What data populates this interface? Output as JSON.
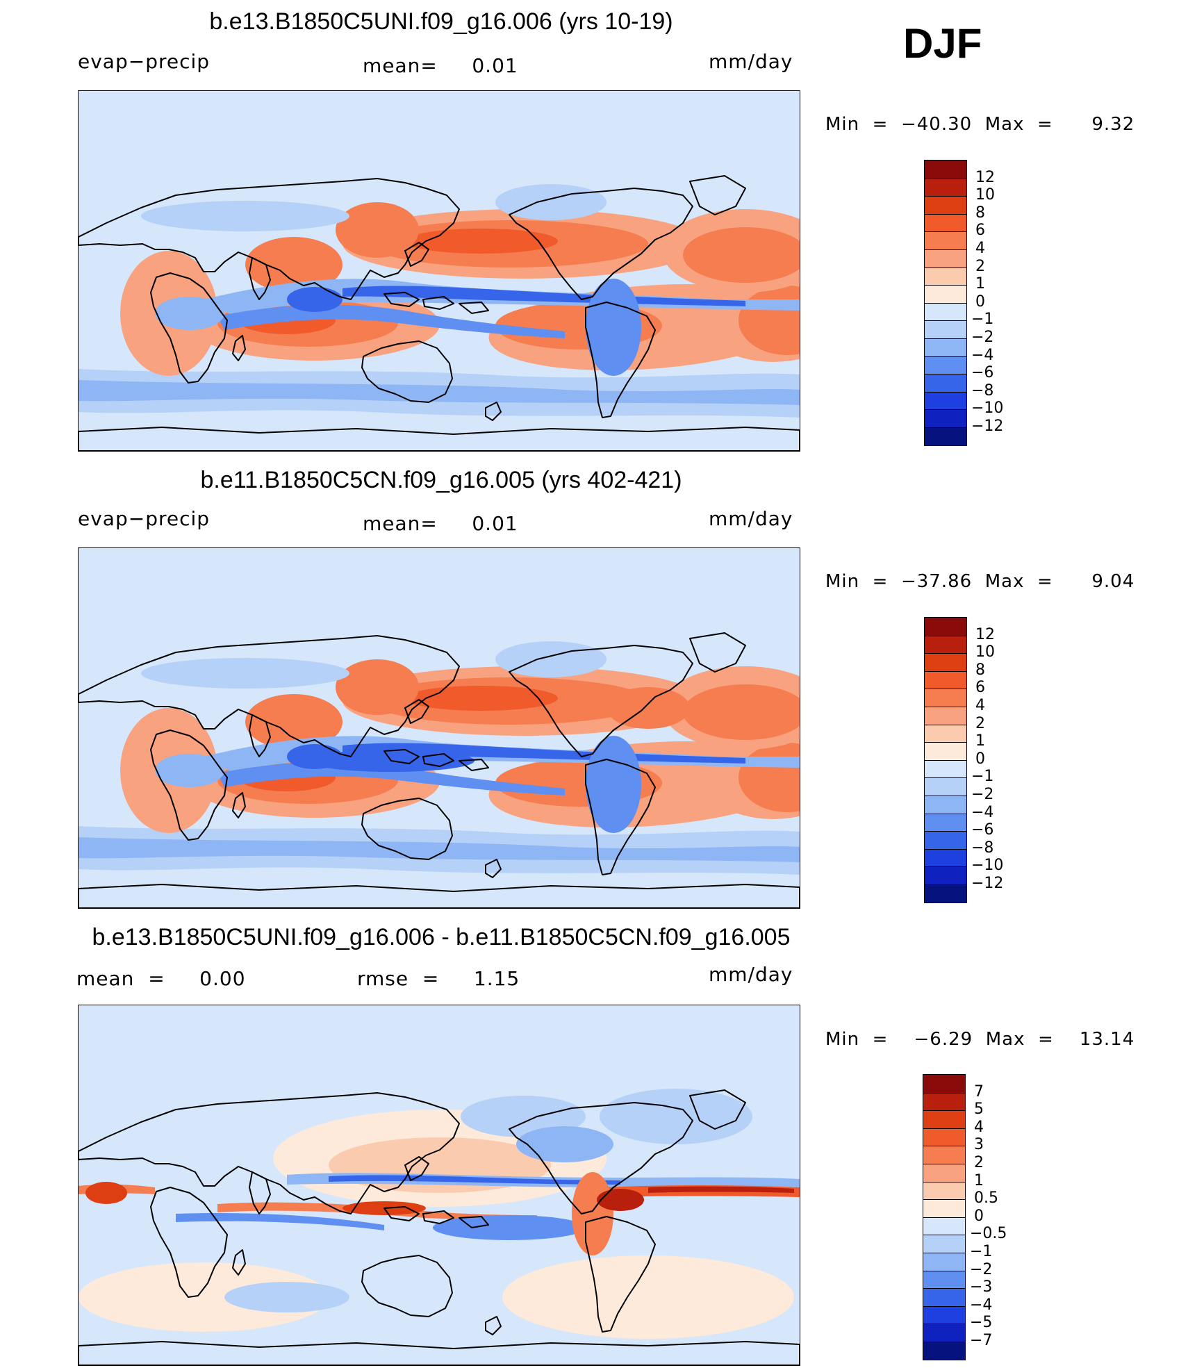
{
  "season": "DJF",
  "colors": {
    "land_fill": "#d6e7fb",
    "ocean_base": "#d6e7fb",
    "coast": "#000000"
  },
  "panels": [
    {
      "title": "b.e13.B1850C5UNI.f09_g16.006 (yrs 10-19)",
      "left_label": "evap−precip",
      "center_label": "mean=     0.01",
      "right_label": "mm/day",
      "minmax": "Min  =  −40.30  Max  =      9.32",
      "colorbar": {
        "labels": [
          "12",
          "10",
          "8",
          "6",
          "4",
          "2",
          "1",
          "0",
          "−1",
          "−2",
          "−4",
          "−6",
          "−8",
          "−10",
          "−12"
        ],
        "colors": [
          "#8b0a0a",
          "#b8200d",
          "#dd3e12",
          "#f15a2b",
          "#f57d4f",
          "#f8a27f",
          "#fbcbb0",
          "#fdeada",
          "#d6e7fb",
          "#b6d1f8",
          "#8fb6f4",
          "#5f8ff0",
          "#3665ea",
          "#1f40e0",
          "#0f22c0",
          "#06137f"
        ]
      }
    },
    {
      "title": "b.e11.B1850C5CN.f09_g16.005 (yrs 402-421)",
      "left_label": "evap−precip",
      "center_label": "mean=     0.01",
      "right_label": "mm/day",
      "minmax": "Min  =  −37.86  Max  =      9.04",
      "colorbar": {
        "labels": [
          "12",
          "10",
          "8",
          "6",
          "4",
          "2",
          "1",
          "0",
          "−1",
          "−2",
          "−4",
          "−6",
          "−8",
          "−10",
          "−12"
        ],
        "colors": [
          "#8b0a0a",
          "#b8200d",
          "#dd3e12",
          "#f15a2b",
          "#f57d4f",
          "#f8a27f",
          "#fbcbb0",
          "#fdeada",
          "#d6e7fb",
          "#b6d1f8",
          "#8fb6f4",
          "#5f8ff0",
          "#3665ea",
          "#1f40e0",
          "#0f22c0",
          "#06137f"
        ]
      }
    },
    {
      "title": "b.e13.B1850C5UNI.f09_g16.006 - b.e11.B1850C5CN.f09_g16.005",
      "left_label": "mean  =     0.00",
      "center_label": "rmse  =     1.15",
      "right_label": "mm/day",
      "minmax": "Min  =    −6.29  Max  =    13.14",
      "colorbar": {
        "labels": [
          "7",
          "5",
          "4",
          "3",
          "2",
          "1",
          "0.5",
          "0",
          "−0.5",
          "−1",
          "−2",
          "−3",
          "−4",
          "−5",
          "−7"
        ],
        "colors": [
          "#8b0a0a",
          "#b8200d",
          "#dd3e12",
          "#f15a2b",
          "#f57d4f",
          "#f8a27f",
          "#fbcbb0",
          "#fdeada",
          "#d6e7fb",
          "#b6d1f8",
          "#8fb6f4",
          "#5f8ff0",
          "#3665ea",
          "#1f40e0",
          "#0f22c0",
          "#06137f"
        ]
      }
    }
  ]
}
